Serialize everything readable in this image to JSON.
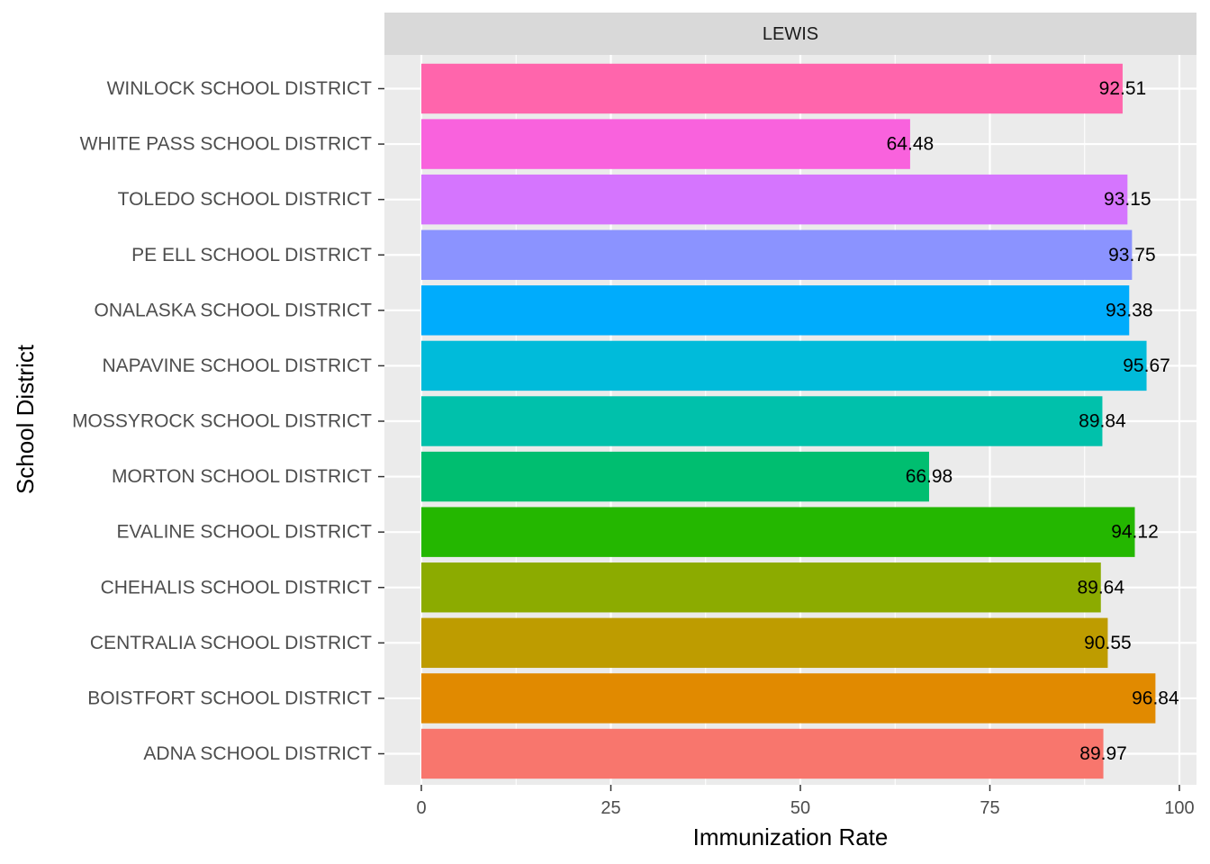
{
  "chart_data": {
    "type": "bar",
    "orientation": "horizontal",
    "facet_label": "LEWIS",
    "xlabel": "Immunization Rate",
    "ylabel": "School District",
    "xlim": [
      0,
      100
    ],
    "x_ticks": [
      0,
      25,
      50,
      75,
      100
    ],
    "grid": true,
    "legend": "none",
    "categories": [
      "ADNA SCHOOL DISTRICT",
      "BOISTFORT SCHOOL DISTRICT",
      "CENTRALIA SCHOOL DISTRICT",
      "CHEHALIS SCHOOL DISTRICT",
      "EVALINE SCHOOL DISTRICT",
      "MORTON SCHOOL DISTRICT",
      "MOSSYROCK SCHOOL DISTRICT",
      "NAPAVINE SCHOOL DISTRICT",
      "ONALASKA SCHOOL DISTRICT",
      "PE ELL SCHOOL DISTRICT",
      "TOLEDO SCHOOL DISTRICT",
      "WHITE PASS SCHOOL DISTRICT",
      "WINLOCK SCHOOL DISTRICT"
    ],
    "values": [
      89.97,
      96.84,
      90.55,
      89.64,
      94.12,
      66.98,
      89.84,
      95.67,
      93.38,
      93.75,
      93.15,
      64.48,
      92.51
    ],
    "labels": [
      "89.97",
      "96.84",
      "90.55",
      "89.64",
      "94.12",
      "66.98",
      "89.84",
      "95.67",
      "93.38",
      "93.75",
      "93.15",
      "64.48",
      "92.51"
    ],
    "colors": [
      "#F8766D",
      "#E18A00",
      "#BE9C00",
      "#8CAB00",
      "#24B700",
      "#00BE70",
      "#00C1AB",
      "#00BBDA",
      "#00ACFC",
      "#8B93FF",
      "#D575FE",
      "#F962DD",
      "#FF65AC"
    ]
  }
}
